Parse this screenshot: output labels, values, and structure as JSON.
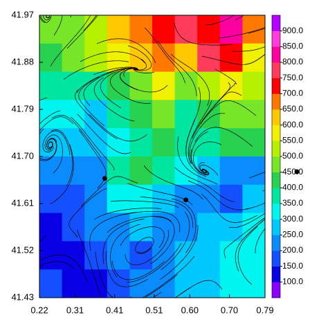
{
  "chart_data": {
    "type": "contour",
    "xlim": [
      0.22,
      0.79
    ],
    "ylim": [
      41.43,
      41.97
    ],
    "xticks": [
      0.22,
      0.31,
      0.41,
      0.51,
      {
        "value": 0.6,
        "label": "0.60"
      },
      {
        "value": 0.7,
        "label": "0.70"
      },
      0.79
    ],
    "yticks": [
      41.43,
      41.52,
      41.61,
      {
        "value": 41.7,
        "label": "41.70"
      },
      41.79,
      41.88,
      41.97
    ],
    "z": [
      [
        450,
        480,
        520,
        600,
        650,
        700,
        750,
        700,
        800,
        650
      ],
      [
        420,
        450,
        500,
        550,
        600,
        650,
        600,
        750,
        700,
        550
      ],
      [
        380,
        350,
        380,
        420,
        450,
        550,
        450,
        500,
        550,
        500
      ],
      [
        320,
        300,
        280,
        350,
        420,
        480,
        380,
        420,
        450,
        480
      ],
      [
        280,
        250,
        250,
        300,
        380,
        420,
        350,
        380,
        400,
        420
      ],
      [
        220,
        200,
        200,
        350,
        400,
        350,
        300,
        250,
        200,
        220
      ],
      [
        180,
        170,
        220,
        300,
        300,
        250,
        220,
        200,
        180,
        250
      ],
      [
        130,
        180,
        200,
        220,
        250,
        220,
        230,
        250,
        280,
        300
      ],
      [
        130,
        120,
        180,
        200,
        180,
        220,
        250,
        280,
        300,
        300
      ],
      [
        180,
        130,
        120,
        170,
        200,
        230,
        260,
        280,
        300,
        310
      ]
    ],
    "levels": [
      50,
      100,
      150,
      200,
      250,
      300,
      350,
      400,
      450,
      500,
      550,
      600,
      650,
      700,
      750,
      800,
      850,
      900,
      950
    ],
    "colors": [
      "#8c00ff",
      "#0a00e6",
      "#1450ff",
      "#0a8cff",
      "#00c8ff",
      "#00f5f0",
      "#00e6a0",
      "#28d250",
      "#78e628",
      "#b4f000",
      "#f0f000",
      "#ffc800",
      "#ff7800",
      "#ff0000",
      "#ff3c5a",
      "#ff00a0",
      "#ff3cdc",
      "#b400ff"
    ],
    "cticks": [
      {
        "value": 100,
        "label": "100.0"
      },
      {
        "value": 150,
        "label": "150.0"
      },
      {
        "value": 200,
        "label": "200.0"
      },
      {
        "value": 250,
        "label": "250.0"
      },
      {
        "value": 300,
        "label": "300.0"
      },
      {
        "value": 350,
        "label": "350.0"
      },
      {
        "value": 400,
        "label": "400.0"
      },
      {
        "value": 450,
        "label": "450.0"
      },
      {
        "value": 500,
        "label": "500.0"
      },
      {
        "value": 550,
        "label": "550.0"
      },
      {
        "value": 600,
        "label": "600.0"
      },
      {
        "value": 650,
        "label": "650.0"
      },
      {
        "value": 700,
        "label": "700.0"
      },
      {
        "value": 750,
        "label": "750.0"
      },
      {
        "value": 800,
        "label": "800.0"
      },
      {
        "value": 850,
        "label": "850.0"
      },
      {
        "value": 900,
        "label": "900.0"
      }
    ],
    "markers": {
      "x": [
        0.385,
        0.59
      ],
      "y": [
        41.658,
        41.617
      ]
    }
  }
}
